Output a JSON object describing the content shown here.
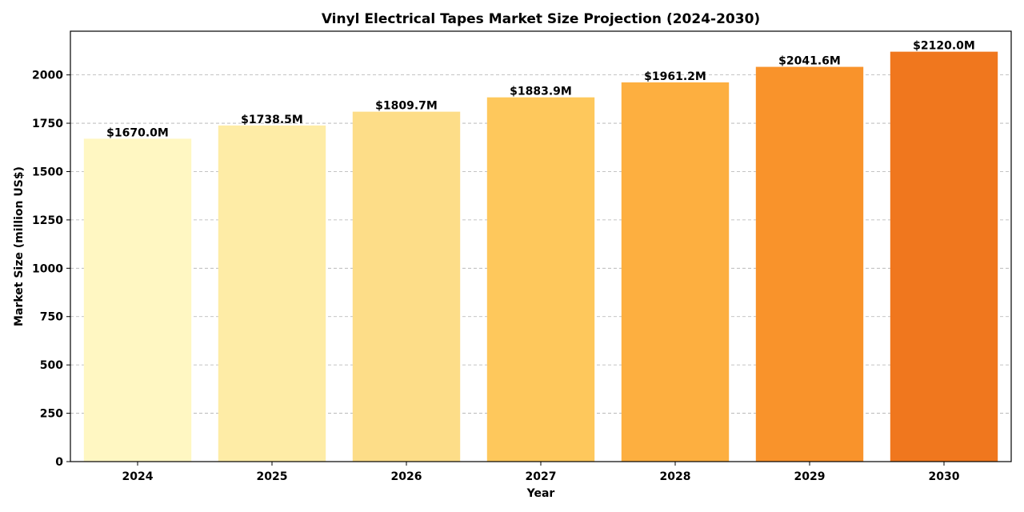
{
  "chart_data": {
    "type": "bar",
    "title": "Vinyl Electrical Tapes Market Size Projection (2024-2030)",
    "xlabel": "Year",
    "ylabel": "Market Size (million US$)",
    "categories": [
      "2024",
      "2025",
      "2026",
      "2027",
      "2028",
      "2029",
      "2030"
    ],
    "values": [
      1670.0,
      1738.5,
      1809.7,
      1883.9,
      1961.2,
      2041.6,
      2120.0
    ],
    "value_labels": [
      "$1670.0M",
      "$1738.5M",
      "$1809.7M",
      "$1883.9M",
      "$1961.2M",
      "$2041.6M",
      "$2120.0M"
    ],
    "colors": [
      "#FFF7C2",
      "#FEECA6",
      "#FDDD88",
      "#FEC85C",
      "#FDAF40",
      "#F9932B",
      "#F0771E"
    ],
    "ylim": [
      0,
      2226
    ],
    "yticks": [
      0,
      250,
      500,
      750,
      1000,
      1250,
      1500,
      1750,
      2000
    ],
    "ytick_labels": [
      "0",
      "250",
      "500",
      "750",
      "1000",
      "1250",
      "1500",
      "1750",
      "2000"
    ],
    "grid": "y-dashed",
    "legend": "none"
  }
}
